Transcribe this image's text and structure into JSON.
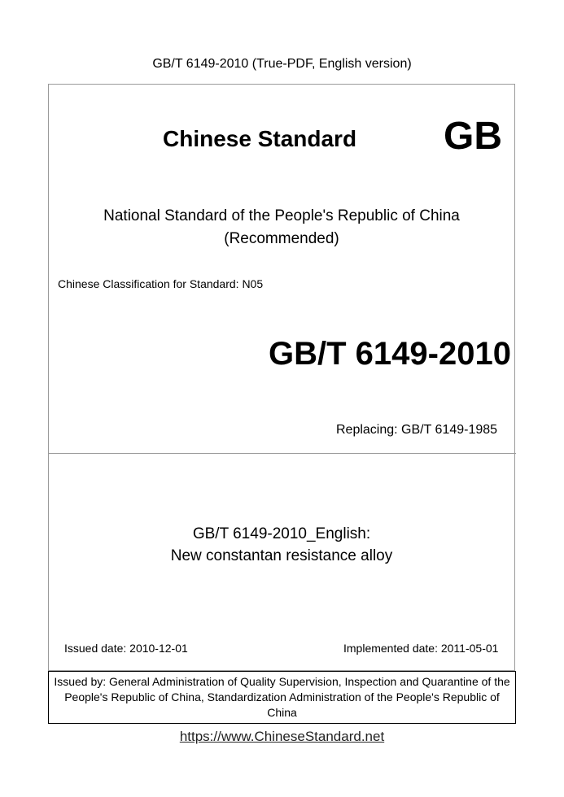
{
  "header": {
    "title": "GB/T 6149-2010 (True-PDF, English version)"
  },
  "cover": {
    "brand": "Chinese Standard",
    "logo": "GB",
    "national_line1": "National Standard of the People's Republic of China",
    "national_line2": "(Recommended)",
    "classification": "Chinese Classification for Standard: N05",
    "code": "GB/T 6149-2010",
    "replacing": "Replacing: GB/T 6149-1985",
    "english_title_line1": "GB/T 6149-2010_English:",
    "english_title_line2": "New constantan resistance alloy",
    "issued_date": "Issued date: 2010-12-01",
    "implemented_date": "Implemented date: 2011-05-01"
  },
  "issuer": {
    "text": "Issued by: General Administration of Quality Supervision, Inspection and Quarantine of the People's Republic of China, Standardization Administration of the People's Republic of China"
  },
  "footer": {
    "url": "https://www.ChineseStandard.net"
  }
}
